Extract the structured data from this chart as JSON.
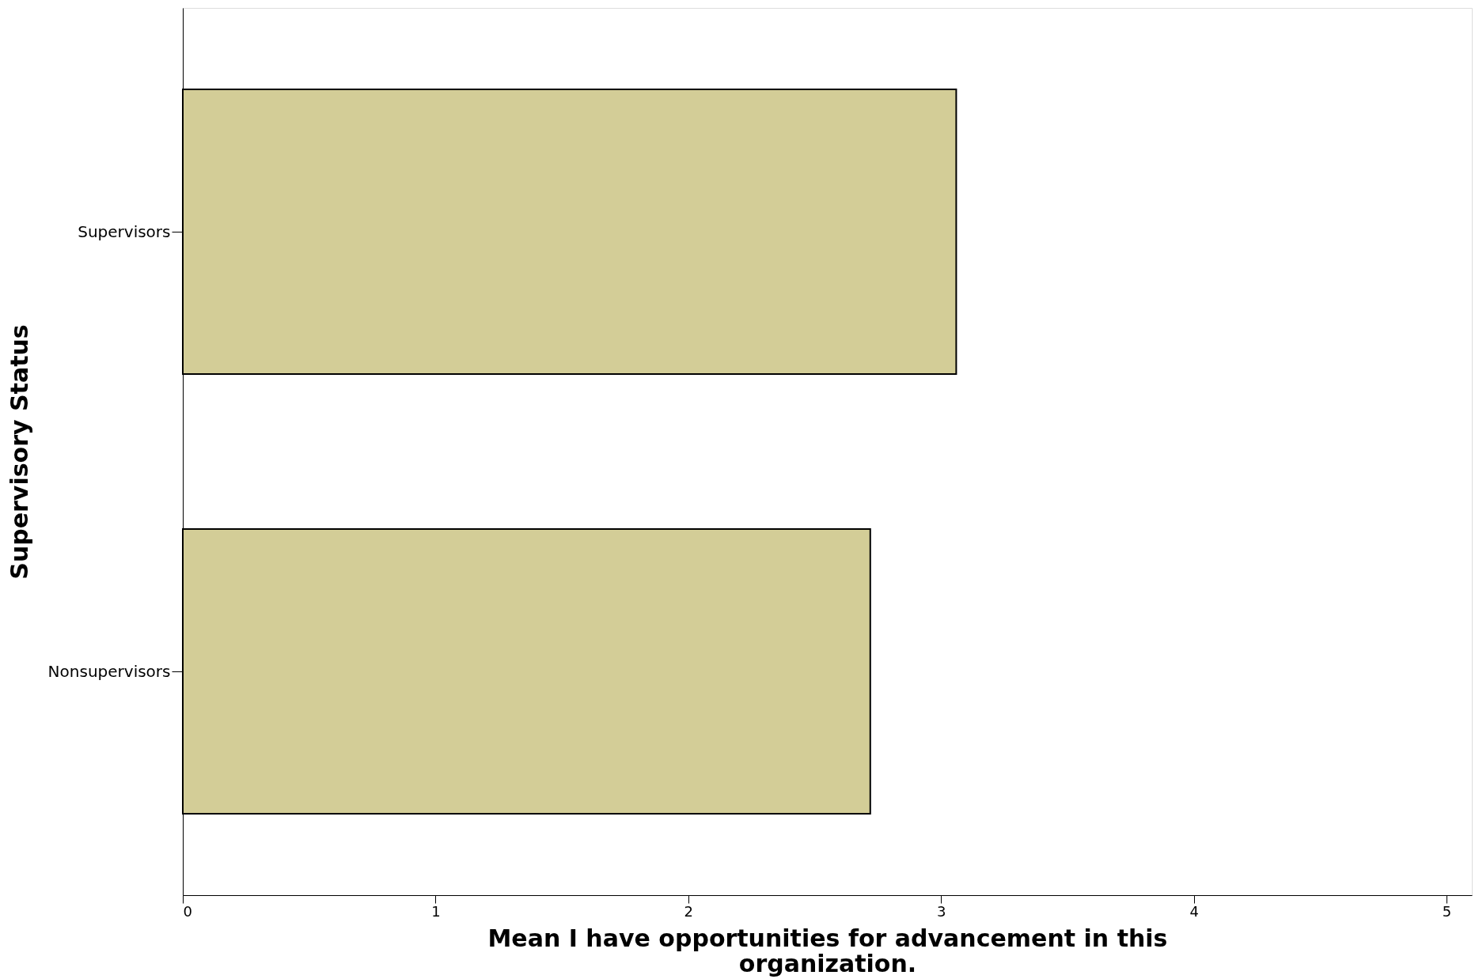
{
  "chart_data": {
    "type": "bar",
    "orientation": "horizontal",
    "categories": [
      "Supervisors",
      "Nonsupervisors"
    ],
    "values": [
      3.06,
      2.72
    ],
    "color": "#d3cd97",
    "xlabel": "Mean I have opportunities for advancement in this organization.",
    "ylabel": "Supervisory Status",
    "xlim": [
      0,
      5.1
    ],
    "xticks": [
      0,
      1,
      2,
      3,
      4,
      5
    ],
    "grid": false
  }
}
